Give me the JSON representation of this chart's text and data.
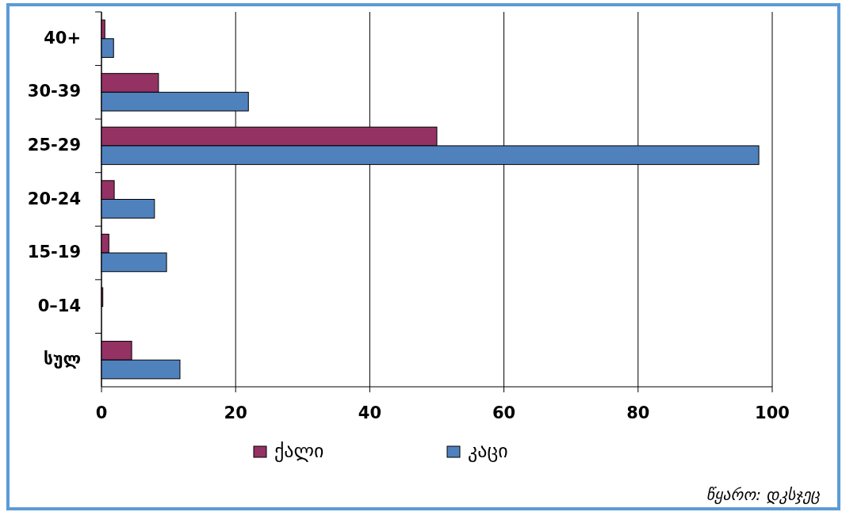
{
  "chart_data": {
    "type": "bar",
    "orientation": "horizontal",
    "categories": [
      "40+",
      "30-39",
      "25-29",
      "20-24",
      "15-19",
      "0–14",
      "სულ"
    ],
    "series": [
      {
        "name": "ქალი",
        "color": "#943264",
        "values": [
          0.5,
          8.5,
          50,
          1.9,
          1.1,
          0.2,
          4.5
        ]
      },
      {
        "name": "კაცი",
        "color": "#4f81bd",
        "values": [
          1.8,
          21.9,
          98,
          7.9,
          9.7,
          0,
          11.7
        ]
      }
    ],
    "xlim": [
      0,
      100
    ],
    "xticks": [
      0,
      20,
      40,
      60,
      80,
      100
    ],
    "grid": "x",
    "legend": "bottom",
    "annotations": [
      "წყარო: დკსჯეც"
    ]
  }
}
